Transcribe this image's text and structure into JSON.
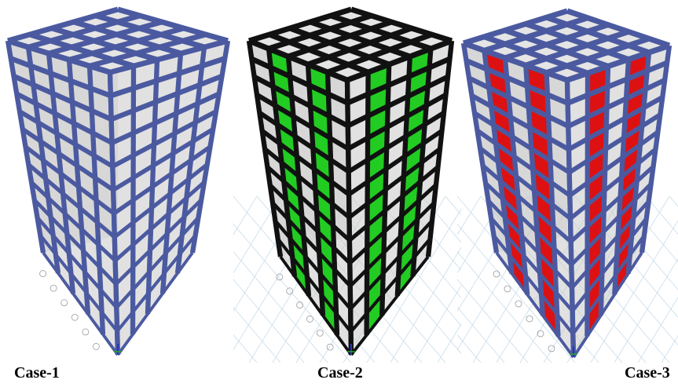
{
  "captions": {
    "case1": "Case-1",
    "case2": "Case-2",
    "case3": "Case-3"
  },
  "colors": {
    "frame_blue": "#4b5aa0",
    "frame_black": "#111111",
    "wall_green": "#22cc22",
    "wall_red": "#dd1111",
    "slab_gray": "#c9c9c9",
    "grid_line": "#c8dcea"
  },
  "panels": [
    {
      "id": "case1",
      "frame": "frame_blue",
      "walls": "none",
      "grid": false
    },
    {
      "id": "case2",
      "frame": "frame_black",
      "walls": "wall_green",
      "grid": true
    },
    {
      "id": "case3",
      "frame": "frame_blue",
      "walls": "wall_red",
      "grid": true
    }
  ]
}
